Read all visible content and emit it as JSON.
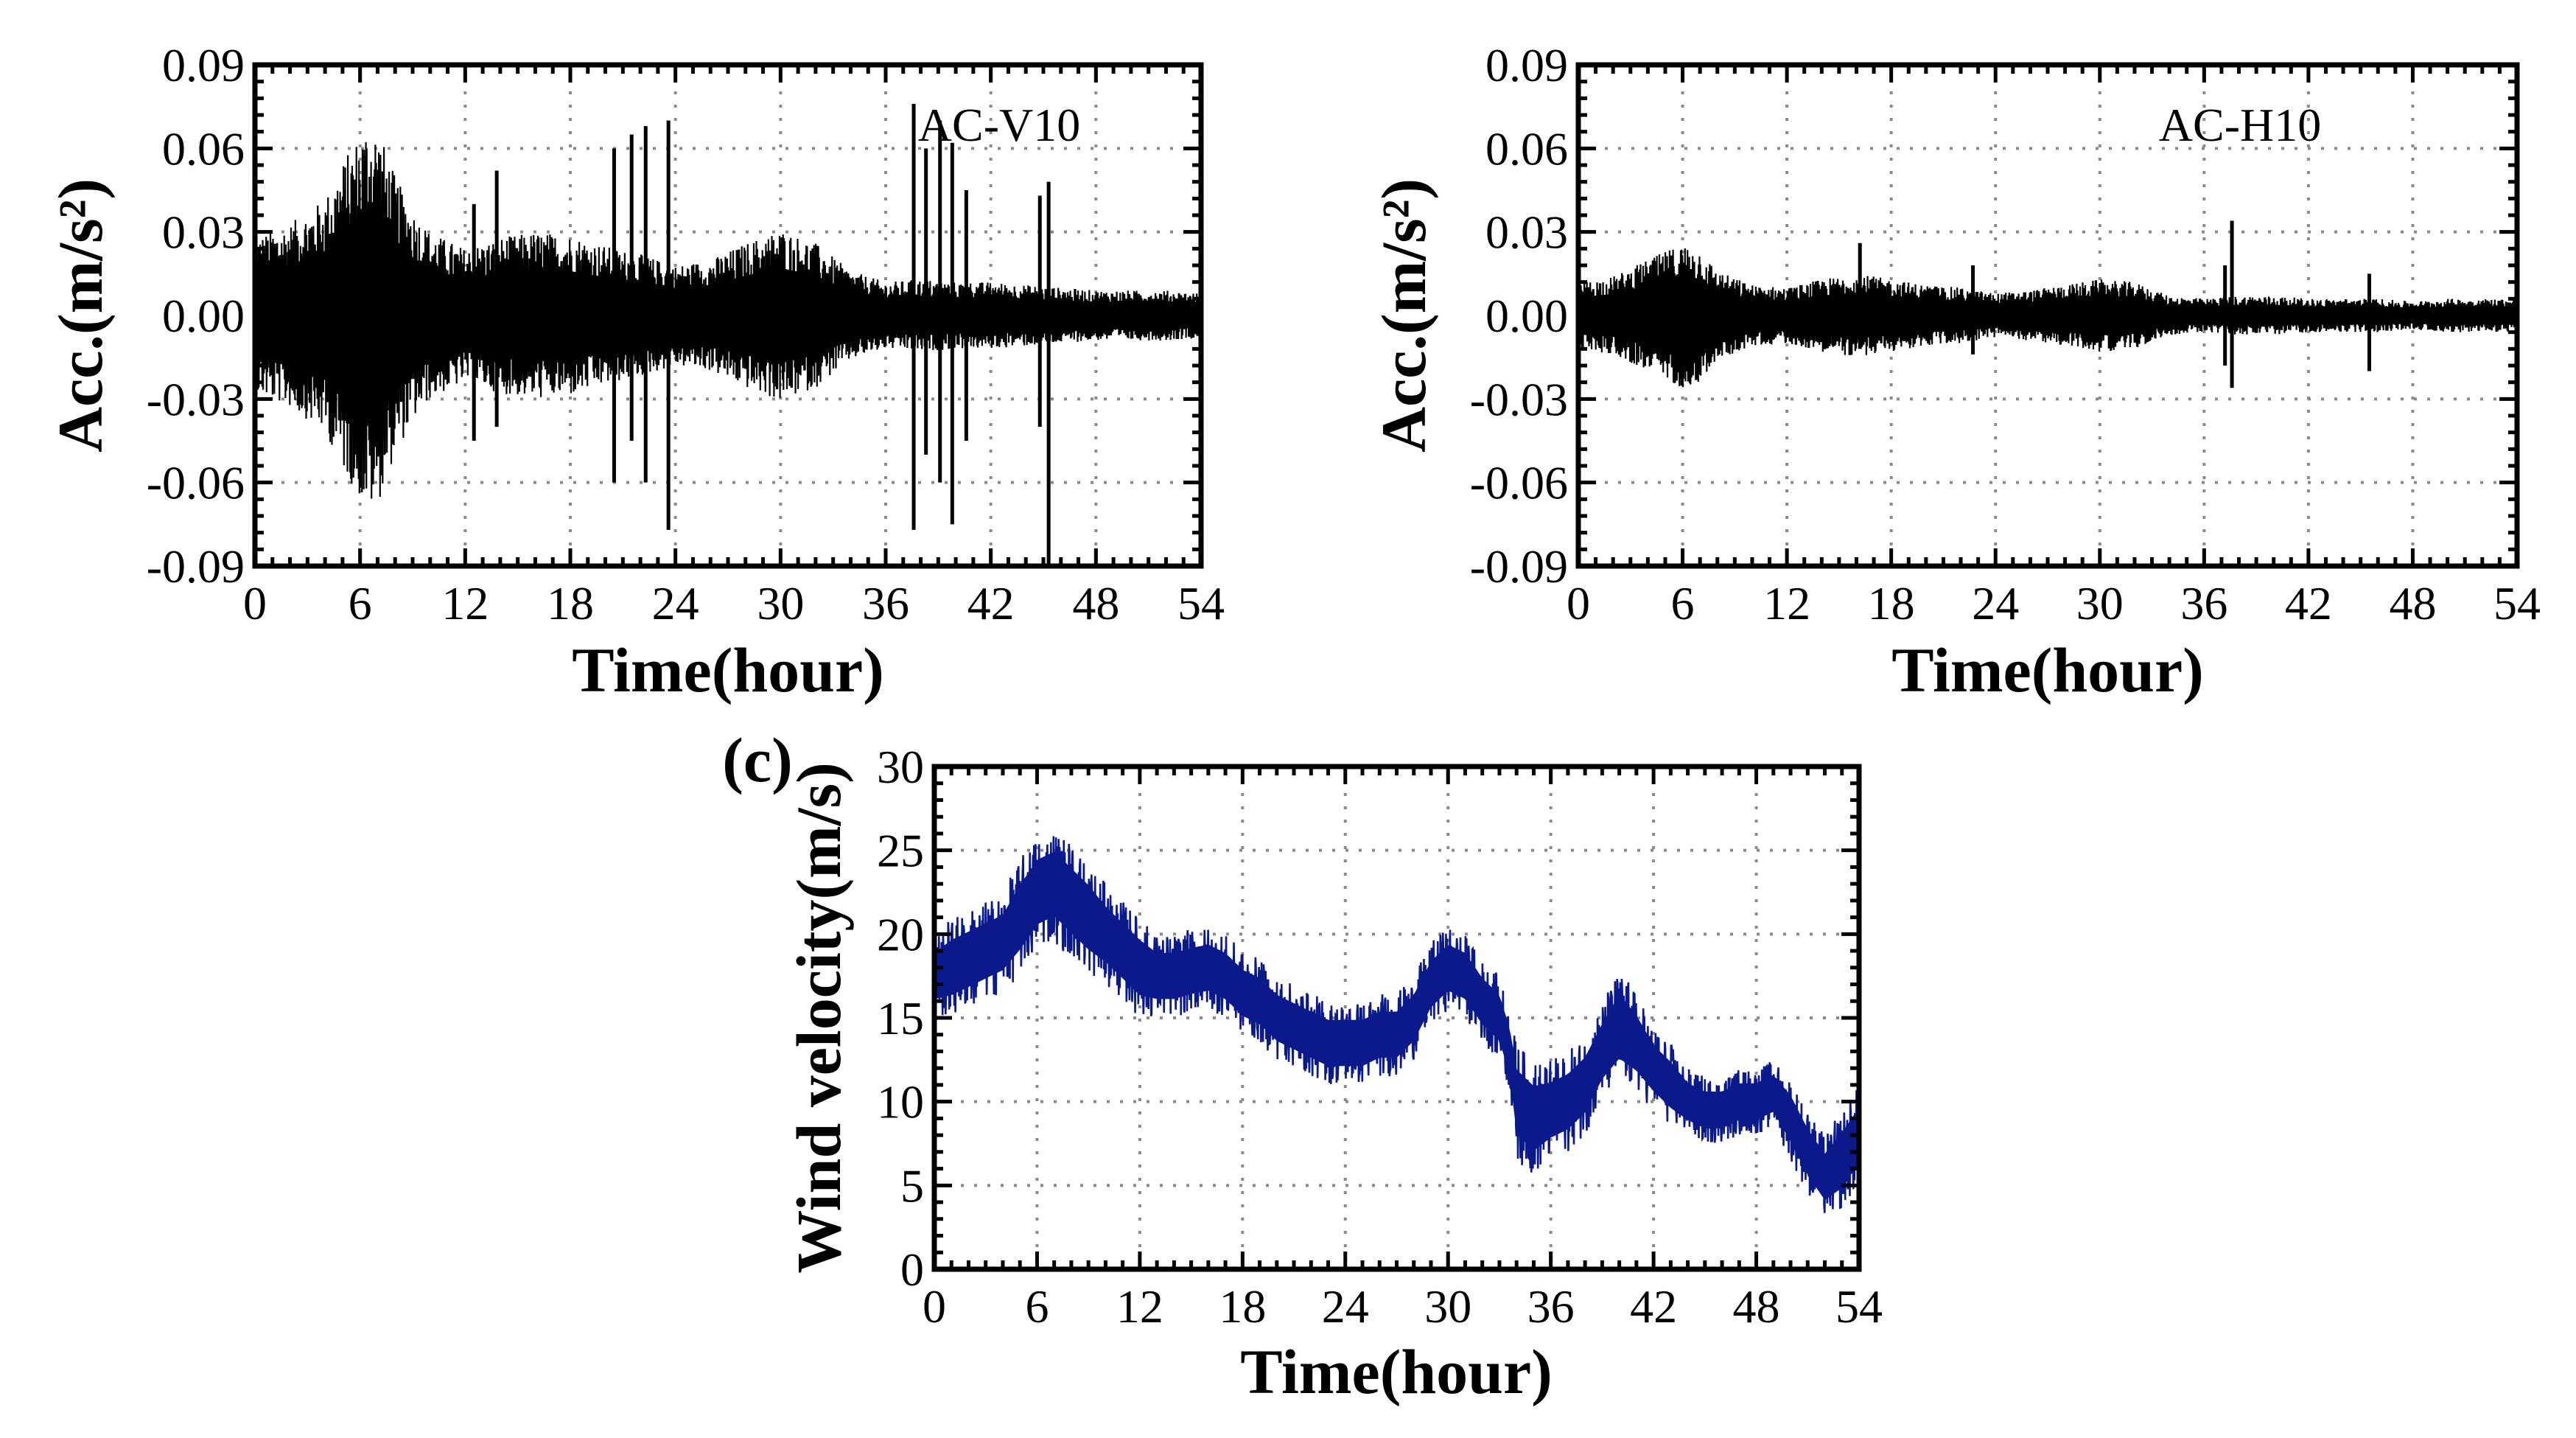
{
  "chart_data": [
    {
      "type": "line",
      "id": "a",
      "panel_label": "AC-V10",
      "xlabel": "Time(hour)",
      "ylabel": "Acc.(m/s²)",
      "x_ticks": [
        "0",
        "6",
        "12",
        "18",
        "24",
        "30",
        "36",
        "42",
        "48",
        "54"
      ],
      "y_ticks": [
        "-0.09",
        "-0.06",
        "-0.03",
        "0.00",
        "0.03",
        "0.06",
        "0.09"
      ],
      "xlim": [
        0,
        54
      ],
      "ylim": [
        -0.09,
        0.09
      ],
      "grid": true,
      "series": [
        {
          "name": "AC-V10",
          "color": "#000000",
          "envelope": {
            "x": [
              0,
              2,
              4,
              5,
              6,
              6.5,
              7,
              8,
              9,
              10,
              12,
              14,
              16,
              18,
              20,
              22,
              24,
              26,
              28,
              30,
              32,
              34,
              36,
              38,
              40,
              42,
              44,
              46,
              48,
              50,
              52,
              54
            ],
            "amp": [
              0.028,
              0.033,
              0.042,
              0.055,
              0.066,
              0.07,
              0.068,
              0.05,
              0.038,
              0.03,
              0.024,
              0.028,
              0.03,
              0.029,
              0.025,
              0.022,
              0.018,
              0.02,
              0.026,
              0.031,
              0.026,
              0.016,
              0.012,
              0.013,
              0.012,
              0.012,
              0.011,
              0.01,
              0.009,
              0.009,
              0.009,
              0.008
            ]
          },
          "spikes": [
            {
              "x": 12.5,
              "top": 0.04,
              "bottom": -0.045
            },
            {
              "x": 13.8,
              "top": 0.052,
              "bottom": -0.04
            },
            {
              "x": 20.5,
              "top": 0.06,
              "bottom": -0.06
            },
            {
              "x": 21.5,
              "top": 0.065,
              "bottom": -0.045
            },
            {
              "x": 22.3,
              "top": 0.068,
              "bottom": -0.06
            },
            {
              "x": 23.6,
              "top": 0.07,
              "bottom": -0.077
            },
            {
              "x": 37.6,
              "top": 0.076,
              "bottom": -0.077
            },
            {
              "x": 38.3,
              "top": 0.06,
              "bottom": -0.05
            },
            {
              "x": 39.1,
              "top": 0.07,
              "bottom": -0.06
            },
            {
              "x": 39.8,
              "top": 0.062,
              "bottom": -0.075
            },
            {
              "x": 40.6,
              "top": 0.045,
              "bottom": -0.045
            },
            {
              "x": 44.8,
              "top": 0.043,
              "bottom": -0.04
            },
            {
              "x": 45.3,
              "top": 0.048,
              "bottom": -0.09
            }
          ]
        }
      ]
    },
    {
      "type": "line",
      "id": "b",
      "panel_label": "AC-H10",
      "xlabel": "Time(hour)",
      "ylabel": "Acc.(m/s²)",
      "x_ticks": [
        "0",
        "6",
        "12",
        "18",
        "24",
        "30",
        "36",
        "42",
        "48",
        "54"
      ],
      "y_ticks": [
        "-0.09",
        "-0.06",
        "-0.03",
        "0.00",
        "0.03",
        "0.06",
        "0.09"
      ],
      "xlim": [
        0,
        54
      ],
      "ylim": [
        -0.09,
        0.09
      ],
      "grid": true,
      "series": [
        {
          "name": "AC-H10",
          "color": "#000000",
          "envelope": {
            "x": [
              0,
              2,
              4,
              6,
              7,
              8,
              10,
              12,
              14,
              16,
              18,
              20,
              22,
              24,
              26,
              28,
              30,
              32,
              34,
              36,
              38,
              40,
              42,
              44,
              46,
              48,
              50,
              52,
              54
            ],
            "amp": [
              0.012,
              0.014,
              0.02,
              0.026,
              0.024,
              0.016,
              0.011,
              0.01,
              0.013,
              0.015,
              0.013,
              0.011,
              0.01,
              0.008,
              0.009,
              0.011,
              0.013,
              0.012,
              0.007,
              0.006,
              0.007,
              0.007,
              0.006,
              0.006,
              0.006,
              0.005,
              0.006,
              0.006,
              0.006
            ]
          },
          "spikes": [
            {
              "x": 16.2,
              "top": 0.026,
              "bottom": -0.012
            },
            {
              "x": 22.7,
              "top": 0.018,
              "bottom": -0.014
            },
            {
              "x": 37.6,
              "top": 0.034,
              "bottom": -0.026
            },
            {
              "x": 37.2,
              "top": 0.018,
              "bottom": -0.018
            },
            {
              "x": 45.5,
              "top": 0.015,
              "bottom": -0.02
            }
          ]
        }
      ]
    },
    {
      "type": "line",
      "id": "c",
      "panel_tag": "(c)",
      "xlabel": "Time(hour)",
      "ylabel": "Wind velocity(m/s)",
      "x_ticks": [
        "0",
        "6",
        "12",
        "18",
        "24",
        "30",
        "36",
        "42",
        "48",
        "54"
      ],
      "y_ticks": [
        "0",
        "5",
        "10",
        "15",
        "20",
        "25",
        "30"
      ],
      "xlim": [
        0,
        54
      ],
      "ylim": [
        0,
        30
      ],
      "grid": true,
      "series": [
        {
          "name": "Wind velocity",
          "color": "#0a1a8a",
          "x": [
            0,
            1,
            2,
            3,
            4,
            5,
            6,
            7,
            8,
            9,
            10,
            11,
            12,
            13,
            14,
            15,
            16,
            17,
            18,
            19,
            20,
            21,
            22,
            23,
            24,
            25,
            26,
            27,
            28,
            29,
            30,
            31,
            32,
            33,
            33.6,
            34,
            35,
            36,
            37,
            38,
            39,
            40,
            41,
            42,
            43,
            44,
            45,
            46,
            47,
            48,
            49,
            50,
            51,
            52,
            53,
            54
          ],
          "mean": [
            17.5,
            18,
            18.5,
            19,
            19.5,
            21,
            22.5,
            23,
            22,
            21,
            20,
            19,
            18,
            17.5,
            17.5,
            17.8,
            18,
            17.5,
            16.5,
            16,
            15,
            14.5,
            14,
            13.5,
            13.5,
            13.5,
            14,
            14,
            15,
            17,
            18,
            17.5,
            16,
            15,
            13,
            10,
            9,
            9.5,
            10,
            11,
            13,
            14.5,
            13.5,
            12,
            11,
            10,
            9.5,
            9.5,
            10,
            10,
            10.5,
            9,
            7,
            5.5,
            6.5,
            8
          ],
          "halfwidth": [
            2.5,
            3,
            3,
            3,
            3,
            3.5,
            3.5,
            3.5,
            3.5,
            3.5,
            3,
            3,
            3,
            2.5,
            2.5,
            2.5,
            2.5,
            2.5,
            2.5,
            2.5,
            2.5,
            2.5,
            2.5,
            2.5,
            2.5,
            2.5,
            2.5,
            2.5,
            2.5,
            2.5,
            2.5,
            2.5,
            2.5,
            2.5,
            2.5,
            3.5,
            3.5,
            3,
            3,
            3,
            3,
            3.5,
            3,
            2.5,
            2.5,
            2,
            2,
            2,
            2,
            2,
            2,
            2.5,
            2.5,
            2.5,
            3,
            3
          ]
        }
      ]
    }
  ]
}
